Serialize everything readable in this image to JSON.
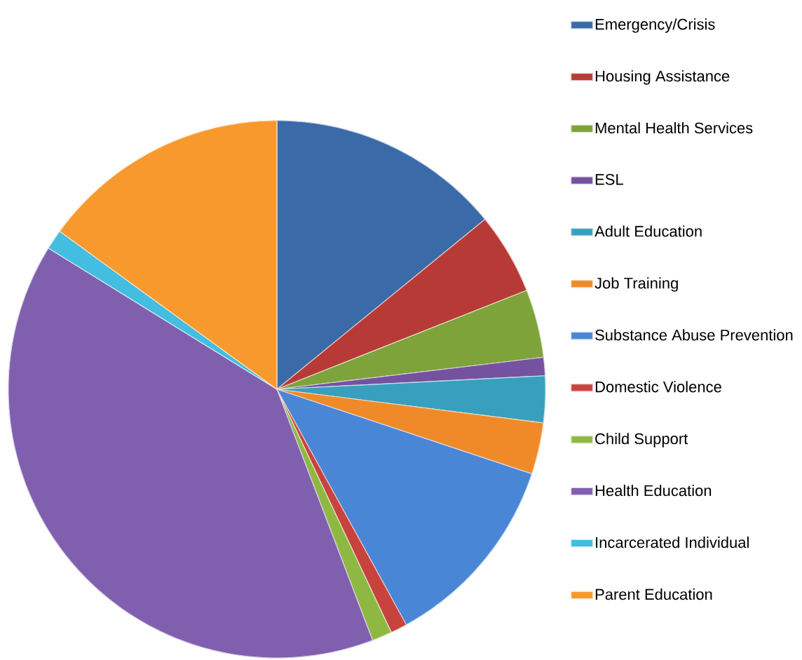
{
  "chart_data": {
    "type": "pie",
    "categories": [
      "Emergency/Crisis",
      "Housing Assistance",
      "Mental Health Services",
      "ESL",
      "Adult Education",
      "Job Training",
      "Substance Abuse Prevention",
      "Domestic Violence",
      "Child Support",
      "Health Education",
      "Incarcerated Individual",
      "Parent Education"
    ],
    "values": [
      14.1,
      4.9,
      4.1,
      1.1,
      2.8,
      3.1,
      11.9,
      1.0,
      1.2,
      39.6,
      1.2,
      15.0
    ],
    "colors": [
      "#3a6aa8",
      "#b83a36",
      "#7ea33a",
      "#7552a0",
      "#38a0be",
      "#f08a28",
      "#4a86d6",
      "#c8423e",
      "#8fb843",
      "#8060ae",
      "#43bde0",
      "#f8992e"
    ],
    "legend": "right"
  }
}
